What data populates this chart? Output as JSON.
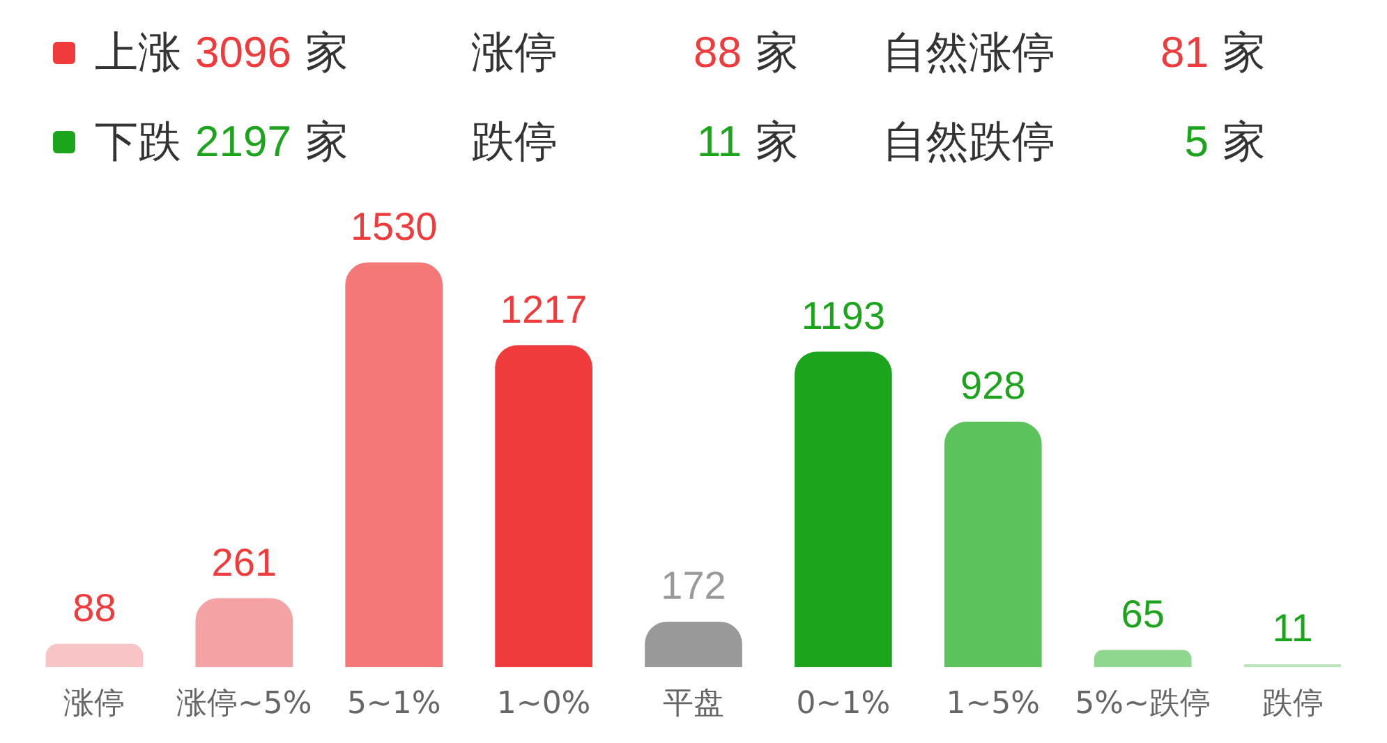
{
  "chart_data": {
    "type": "bar",
    "categories": [
      "涨停",
      "涨停~5%",
      "5~1%",
      "1~0%",
      "平盘",
      "0~1%",
      "1~5%",
      "5%~跌停",
      "跌停"
    ],
    "values": [
      88,
      261,
      1530,
      1217,
      172,
      1193,
      928,
      65,
      11
    ],
    "colors": [
      "#f9c4c6",
      "#f5a2a4",
      "#f47878",
      "#f03b3c",
      "#999999",
      "#1ca51c",
      "#5cc35c",
      "#8fd68f",
      "#b9e6b9"
    ],
    "data_labels": true,
    "grid": false,
    "legend": false,
    "annotations": [
      "上涨 3096 家",
      "涨停 88 家",
      "自然涨停 81 家",
      "下跌 2197 家",
      "跌停 11 家",
      "自然跌停 5 家"
    ]
  }
}
